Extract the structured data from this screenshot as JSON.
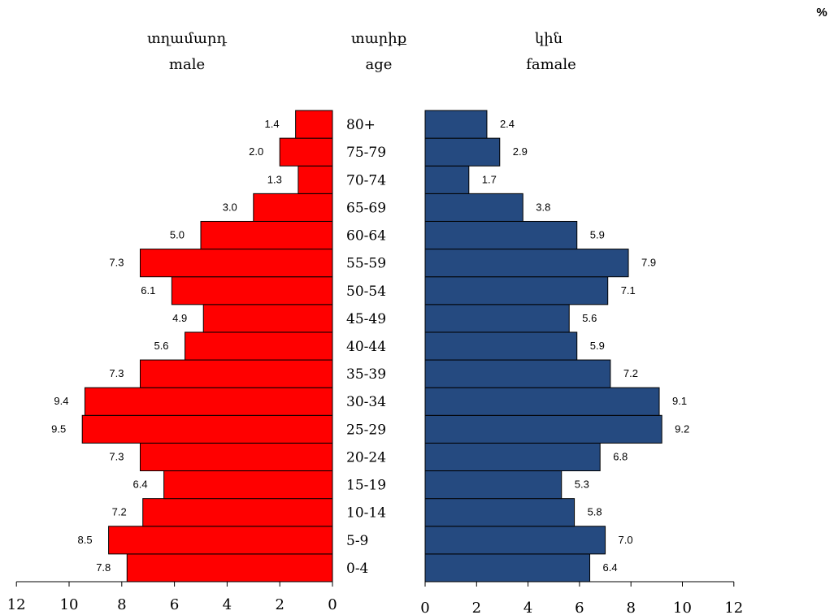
{
  "chart_data": {
    "type": "bar",
    "orientation": "horizontal-population-pyramid",
    "unit_label": "%",
    "categories": [
      "0-4",
      "5-9",
      "10-14",
      "15-19",
      "20-24",
      "25-29",
      "30-34",
      "35-39",
      "40-44",
      "45-49",
      "50-54",
      "55-59",
      "60-64",
      "65-69",
      "70-74",
      "75-79",
      "80+"
    ],
    "category_header": {
      "armenian": "տարիք",
      "english": "age"
    },
    "series": [
      {
        "name": "male",
        "header_armenian": "տղամարդ",
        "header_english": "male",
        "color": "#ff0000",
        "values": [
          7.8,
          8.5,
          7.2,
          6.4,
          7.3,
          9.5,
          9.4,
          7.3,
          5.6,
          4.9,
          6.1,
          7.3,
          5.0,
          3.0,
          1.3,
          2.0,
          1.4
        ],
        "value_labels": [
          "7.8",
          "8.5",
          "7.2",
          "6.4",
          "7.3",
          "9.5",
          "9.4",
          "7.3",
          "5.6",
          "4.9",
          "6.1",
          "7.3",
          "5.0",
          "3.0",
          "1.3",
          "2.0",
          "1.4"
        ],
        "xlim": [
          12,
          0
        ],
        "ticks": [
          "12",
          "10",
          "8",
          "6",
          "4",
          "2",
          "0"
        ]
      },
      {
        "name": "famale",
        "header_armenian": "կին",
        "header_english": "famale",
        "color": "#254a80",
        "values": [
          6.4,
          7.0,
          5.8,
          5.3,
          6.8,
          9.2,
          9.1,
          7.2,
          5.9,
          5.6,
          7.1,
          7.9,
          5.9,
          3.8,
          1.7,
          2.9,
          2.4
        ],
        "value_labels": [
          "6.4",
          "7.0",
          "5.8",
          "5.3",
          "6.8",
          "9.2",
          "9.1",
          "7.2",
          "5.9",
          "5.6",
          "7.1",
          "7.9",
          "5.9",
          "3.8",
          "1.7",
          "2.9",
          "2.4"
        ],
        "xlim": [
          0,
          12
        ],
        "ticks": [
          "0",
          "2",
          "4",
          "6",
          "8",
          "10",
          "12"
        ]
      }
    ]
  }
}
